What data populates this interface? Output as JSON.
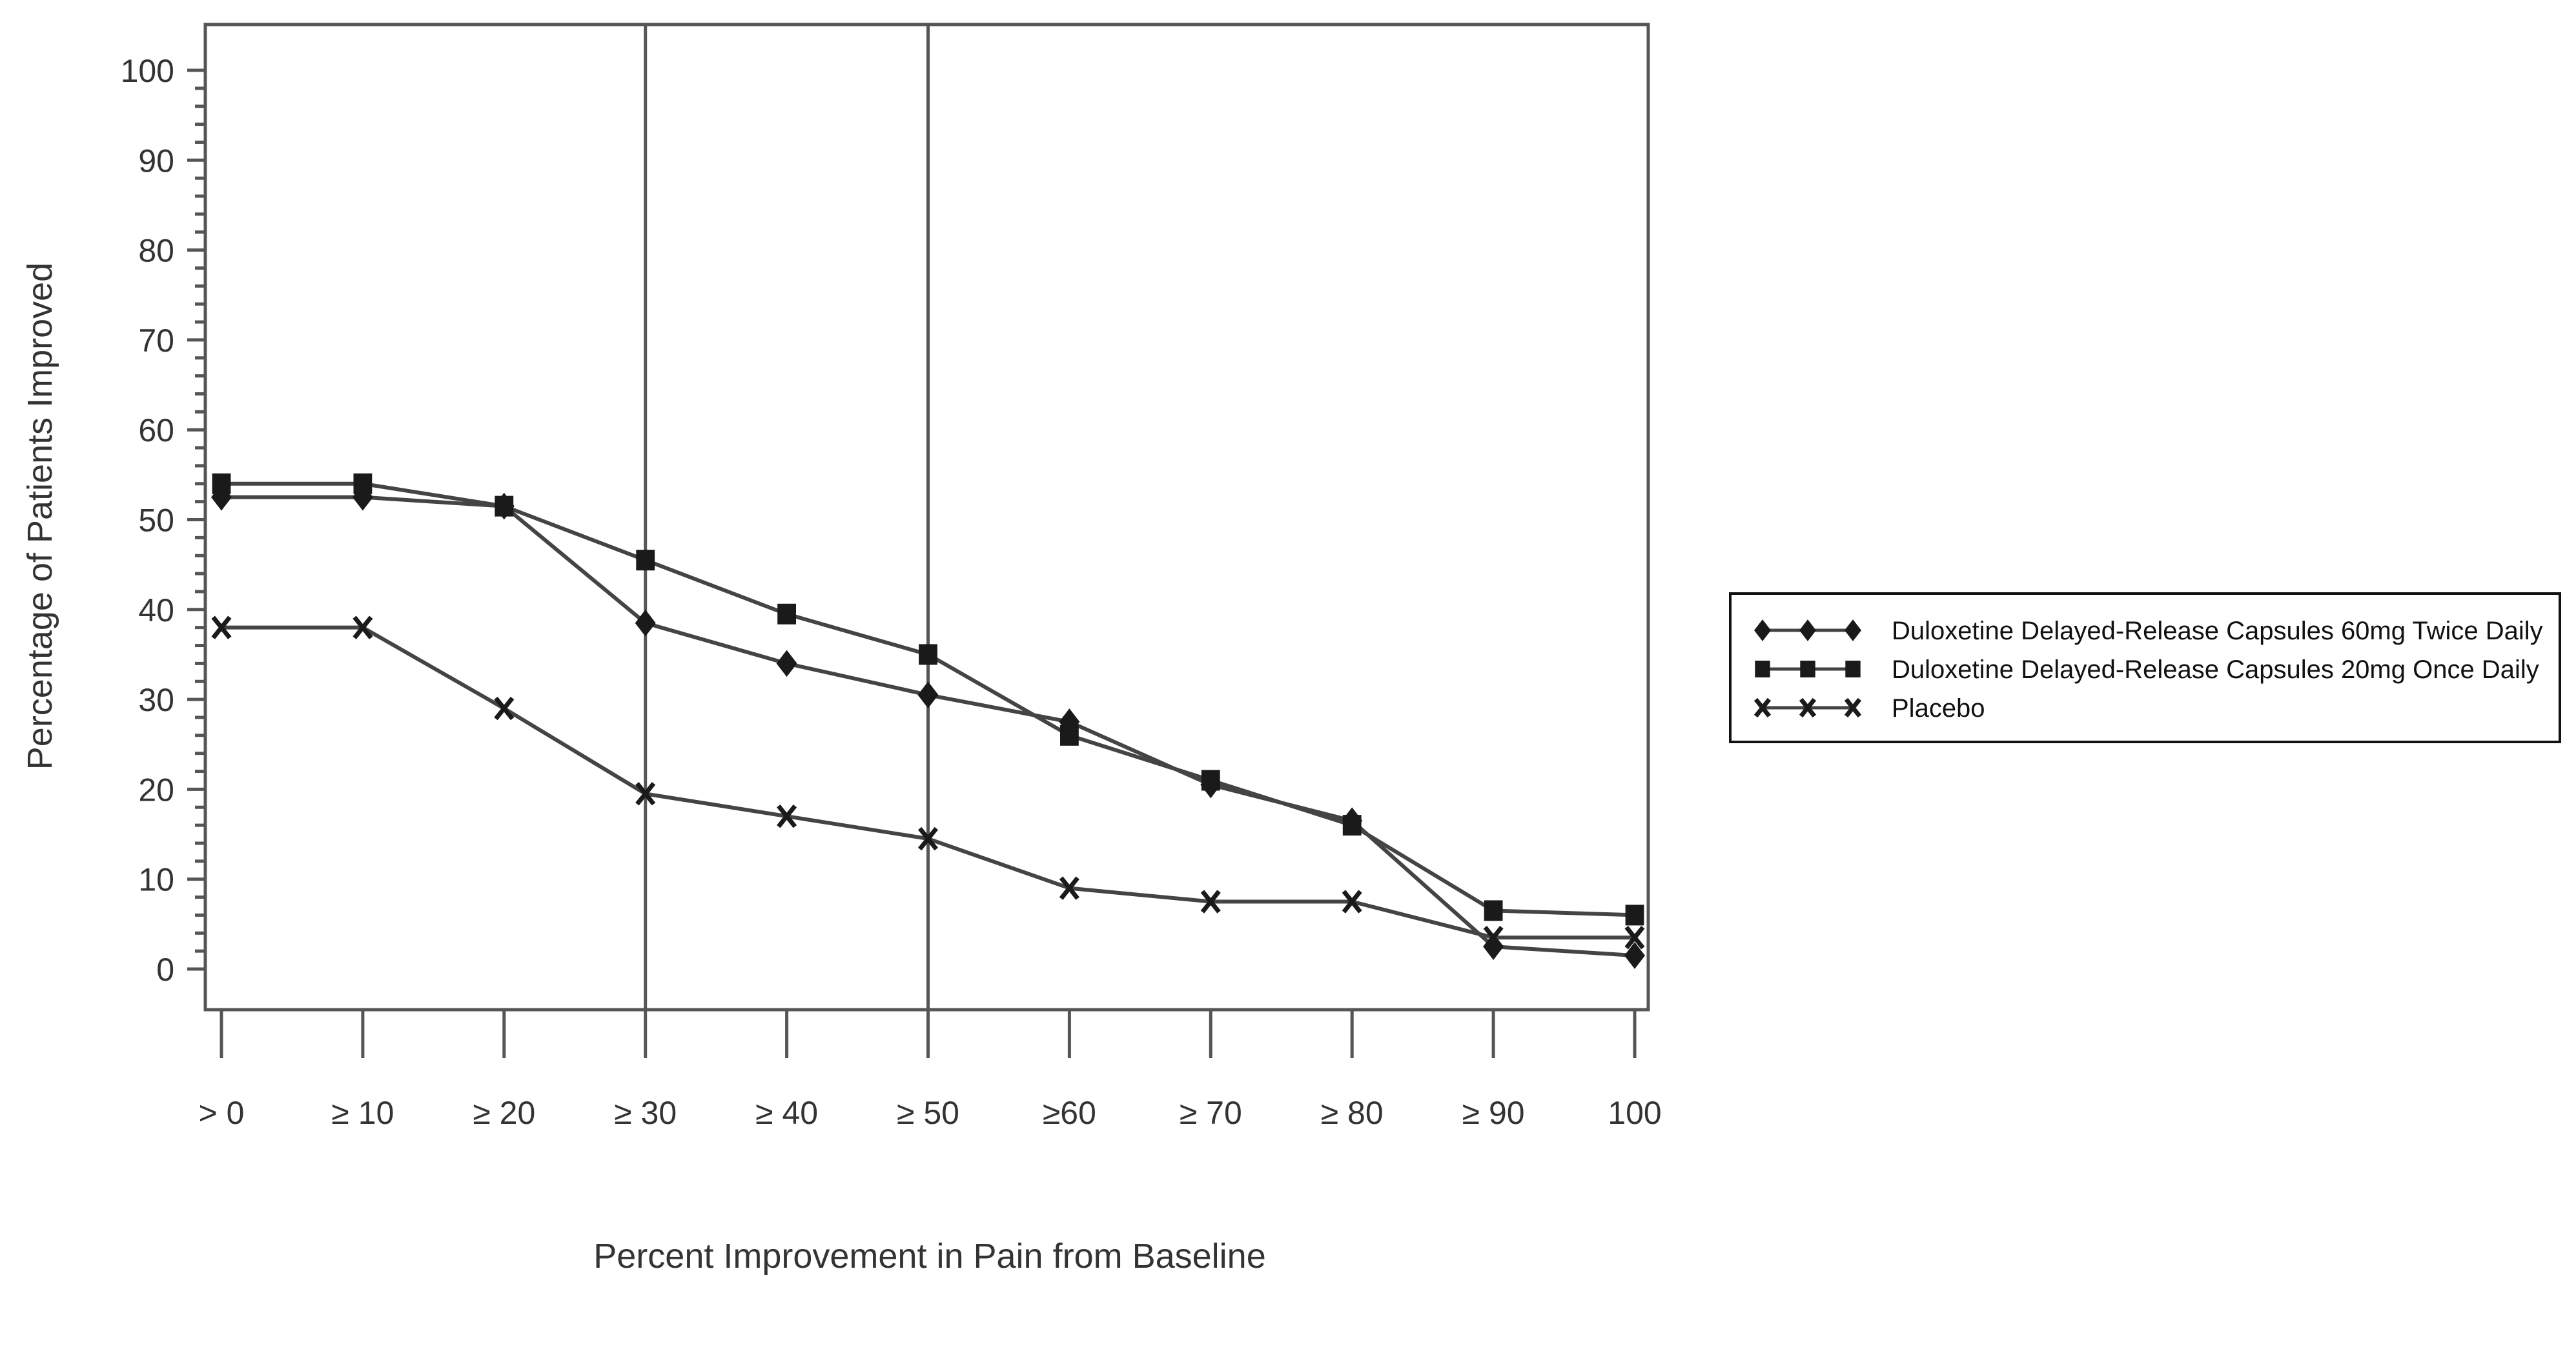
{
  "chart_data": {
    "type": "line",
    "title": "",
    "xlabel": "Percent Improvement in Pain from Baseline",
    "ylabel": "Percentage of Patients Improved",
    "categories": [
      "> 0",
      "≥ 10",
      "≥ 20",
      "≥ 30",
      "≥ 40",
      "≥ 50",
      "≥60",
      "≥ 70",
      "≥ 80",
      "≥ 90",
      "100"
    ],
    "ylim": [
      -5,
      105
    ],
    "yticks": [
      0,
      10,
      20,
      30,
      40,
      50,
      60,
      70,
      80,
      90,
      100
    ],
    "y_minor_step": 2,
    "reference_lines_at": [
      "≥ 30",
      "≥ 50"
    ],
    "grid": false,
    "legend_position": "right",
    "series": [
      {
        "name": "Duloxetine Delayed-Release Capsules 60mg Twice Daily",
        "marker": "diamond",
        "values": [
          52.5,
          52.5,
          51.5,
          38.5,
          34,
          30.5,
          27.5,
          20.5,
          16.5,
          2.5,
          1.5
        ]
      },
      {
        "name": "Duloxetine Delayed-Release Capsules 20mg Once Daily",
        "marker": "square",
        "values": [
          54,
          54,
          51.5,
          45.5,
          39.5,
          35,
          26,
          21,
          16,
          6.5,
          6
        ]
      },
      {
        "name": "Placebo",
        "marker": "x",
        "values": [
          38,
          38,
          29,
          19.5,
          17,
          14.5,
          9,
          7.5,
          7.5,
          3.5,
          3.5
        ]
      }
    ],
    "colors": {
      "line": "#444444",
      "marker": "#1a1a1a",
      "axis": "#555555"
    }
  }
}
